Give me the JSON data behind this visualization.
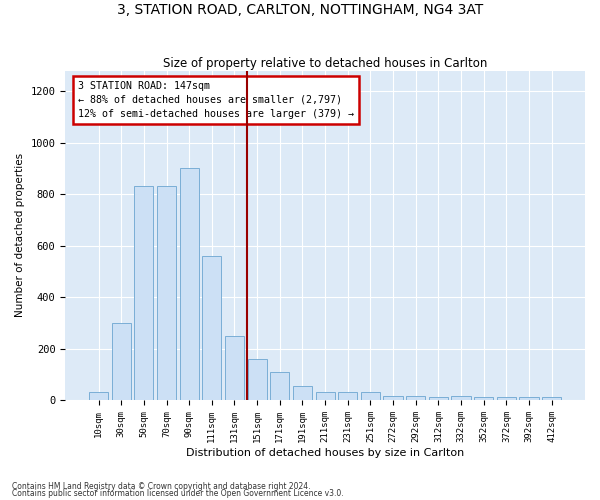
{
  "title": "3, STATION ROAD, CARLTON, NOTTINGHAM, NG4 3AT",
  "subtitle": "Size of property relative to detached houses in Carlton",
  "xlabel": "Distribution of detached houses by size in Carlton",
  "ylabel": "Number of detached properties",
  "bar_color": "#cce0f5",
  "bar_edge_color": "#7aaed6",
  "background_color": "#ddeaf7",
  "grid_color": "#ffffff",
  "fig_background": "#ffffff",
  "categories": [
    "10sqm",
    "30sqm",
    "50sqm",
    "70sqm",
    "90sqm",
    "111sqm",
    "131sqm",
    "151sqm",
    "171sqm",
    "191sqm",
    "211sqm",
    "231sqm",
    "251sqm",
    "272sqm",
    "292sqm",
    "312sqm",
    "332sqm",
    "352sqm",
    "372sqm",
    "392sqm",
    "412sqm"
  ],
  "values": [
    30,
    300,
    830,
    830,
    900,
    560,
    250,
    160,
    110,
    55,
    30,
    30,
    30,
    15,
    15,
    10,
    15,
    10,
    10,
    10,
    10
  ],
  "ylim": [
    0,
    1280
  ],
  "yticks": [
    0,
    200,
    400,
    600,
    800,
    1000,
    1200
  ],
  "vline_x": 6.55,
  "vline_color": "#990000",
  "annotation_line1": "3 STATION ROAD: 147sqm",
  "annotation_line2": "← 88% of detached houses are smaller (2,797)",
  "annotation_line3": "12% of semi-detached houses are larger (379) →",
  "annotation_box_color": "#cc0000",
  "footer1": "Contains HM Land Registry data © Crown copyright and database right 2024.",
  "footer2": "Contains public sector information licensed under the Open Government Licence v3.0."
}
